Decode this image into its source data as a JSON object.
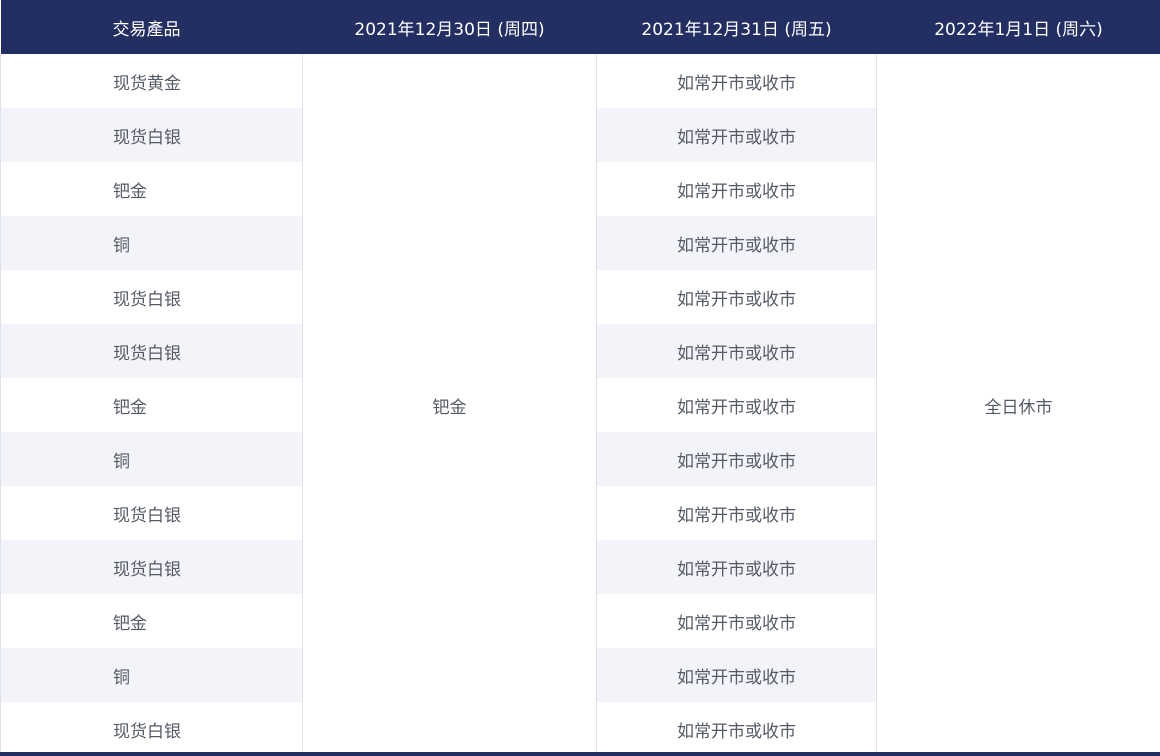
{
  "header": {
    "col_product": "交易產品",
    "col_dec30": "2021年12月30日 (周四)",
    "col_dec31": "2021年12月31日 (周五)",
    "col_jan1": "2022年1月1日 (周六)"
  },
  "dec30_value": "钯金",
  "jan1_value": "全日休市",
  "rows": [
    {
      "product": "现货黄金",
      "dec31": "如常开市或收市"
    },
    {
      "product": "现货白银",
      "dec31": "如常开市或收市"
    },
    {
      "product": "钯金",
      "dec31": "如常开市或收市"
    },
    {
      "product": "铜",
      "dec31": "如常开市或收市"
    },
    {
      "product": "现货白银",
      "dec31": "如常开市或收市"
    },
    {
      "product": "现货白银",
      "dec31": "如常开市或收市"
    },
    {
      "product": "钯金",
      "dec31": "如常开市或收市"
    },
    {
      "product": "铜",
      "dec31": "如常开市或收市"
    },
    {
      "product": "现货白银",
      "dec31": "如常开市或收市"
    },
    {
      "product": "现货白银",
      "dec31": "如常开市或收市"
    },
    {
      "product": "钯金",
      "dec31": "如常开市或收市"
    },
    {
      "product": "铜",
      "dec31": "如常开市或收市"
    },
    {
      "product": "现货白银",
      "dec31": "如常开市或收市"
    }
  ]
}
